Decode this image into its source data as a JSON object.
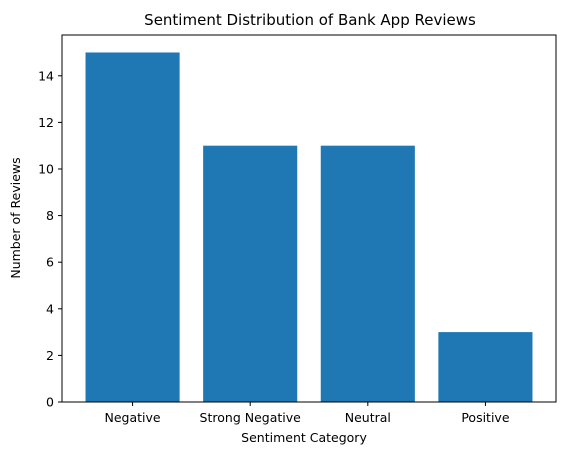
{
  "chart_data": {
    "type": "bar",
    "title": "Sentiment Distribution of Bank App Reviews",
    "xlabel": "Sentiment Category",
    "ylabel": "Number of Reviews",
    "categories": [
      "Negative",
      "Strong Negative",
      "Neutral",
      "Positive"
    ],
    "values": [
      15,
      11,
      11,
      3
    ],
    "ylim": [
      0,
      15.75
    ],
    "yticks": [
      0,
      2,
      4,
      6,
      8,
      10,
      12,
      14
    ],
    "grid": false,
    "legend": "none",
    "bar_color": "#1f77b4"
  }
}
